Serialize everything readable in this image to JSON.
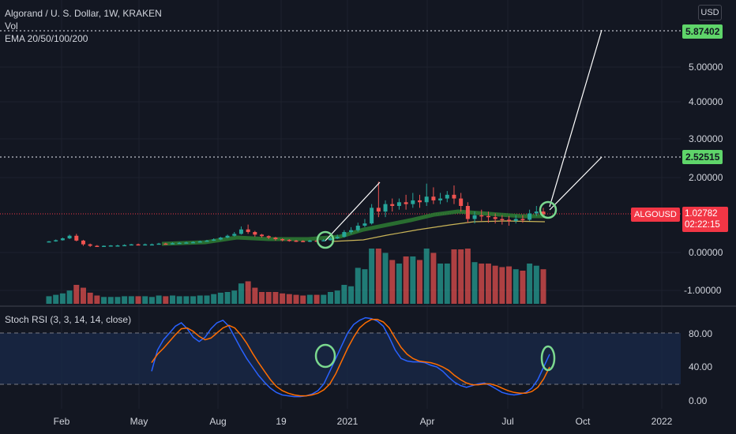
{
  "header": {
    "title": "Algorand / U. S. Dollar, 1W, KRAKEN",
    "vol_label": "Vol",
    "ema_label": "EMA 20/50/100/200",
    "currency": "USD"
  },
  "rsi_legend": "Stoch RSI (3, 3, 14, 14, close)",
  "price_tags": {
    "upper_target": "5.87402",
    "lower_target": "2.52515",
    "symbol": "ALGOUSD",
    "last_price": "1.02782",
    "countdown": "02:22:15"
  },
  "colors": {
    "background": "#131722",
    "up": "#26a69a",
    "down": "#ef5350",
    "ema_fast": "#2e7d32",
    "ema_slow": "#c9b458",
    "rsi_k": "#2962ff",
    "rsi_d": "#ff6d00",
    "annotation": "#ffffff",
    "circle": "#7bd88f",
    "target_tag": "#5fd56a",
    "price_tag": "#f23645"
  },
  "chart_data": [
    {
      "type": "candlestick",
      "title": "Algorand / U. S. Dollar, 1W, KRAKEN",
      "y_ticks": [
        "5.00000",
        "4.00000",
        "3.00000",
        "2.00000",
        "0.00000",
        "-1.00000"
      ],
      "x_ticks": [
        "Feb",
        "May",
        "Aug",
        "19",
        "2021",
        "Apr",
        "Jul",
        "Oct",
        "2022"
      ],
      "target_levels": [
        5.87402,
        2.52515
      ],
      "last_price": 1.02782,
      "candles": [
        [
          0.28,
          0.3,
          0.31,
          0.27
        ],
        [
          0.3,
          0.33,
          0.35,
          0.29
        ],
        [
          0.33,
          0.38,
          0.4,
          0.32
        ],
        [
          0.38,
          0.45,
          0.48,
          0.36
        ],
        [
          0.45,
          0.32,
          0.5,
          0.3
        ],
        [
          0.32,
          0.22,
          0.34,
          0.18
        ],
        [
          0.22,
          0.18,
          0.24,
          0.15
        ],
        [
          0.18,
          0.17,
          0.2,
          0.15
        ],
        [
          0.17,
          0.18,
          0.19,
          0.16
        ],
        [
          0.18,
          0.19,
          0.2,
          0.17
        ],
        [
          0.19,
          0.19,
          0.21,
          0.18
        ],
        [
          0.19,
          0.2,
          0.22,
          0.18
        ],
        [
          0.2,
          0.22,
          0.23,
          0.19
        ],
        [
          0.22,
          0.21,
          0.24,
          0.2
        ],
        [
          0.21,
          0.22,
          0.24,
          0.2
        ],
        [
          0.22,
          0.22,
          0.24,
          0.21
        ],
        [
          0.22,
          0.24,
          0.26,
          0.21
        ],
        [
          0.24,
          0.23,
          0.26,
          0.22
        ],
        [
          0.23,
          0.25,
          0.27,
          0.22
        ],
        [
          0.25,
          0.26,
          0.28,
          0.24
        ],
        [
          0.26,
          0.27,
          0.29,
          0.25
        ],
        [
          0.27,
          0.28,
          0.3,
          0.26
        ],
        [
          0.28,
          0.3,
          0.32,
          0.27
        ],
        [
          0.3,
          0.32,
          0.34,
          0.29
        ],
        [
          0.32,
          0.35,
          0.38,
          0.31
        ],
        [
          0.35,
          0.4,
          0.42,
          0.33
        ],
        [
          0.4,
          0.45,
          0.48,
          0.38
        ],
        [
          0.45,
          0.5,
          0.55,
          0.43
        ],
        [
          0.5,
          0.62,
          0.7,
          0.48
        ],
        [
          0.62,
          0.55,
          0.75,
          0.5
        ],
        [
          0.55,
          0.48,
          0.58,
          0.42
        ],
        [
          0.48,
          0.44,
          0.5,
          0.4
        ],
        [
          0.44,
          0.4,
          0.46,
          0.36
        ],
        [
          0.4,
          0.36,
          0.42,
          0.32
        ],
        [
          0.36,
          0.34,
          0.38,
          0.3
        ],
        [
          0.34,
          0.32,
          0.36,
          0.29
        ],
        [
          0.32,
          0.31,
          0.34,
          0.28
        ],
        [
          0.31,
          0.3,
          0.33,
          0.28
        ],
        [
          0.3,
          0.32,
          0.34,
          0.28
        ],
        [
          0.32,
          0.31,
          0.35,
          0.29
        ],
        [
          0.31,
          0.33,
          0.36,
          0.3
        ],
        [
          0.33,
          0.38,
          0.42,
          0.32
        ],
        [
          0.38,
          0.42,
          0.48,
          0.36
        ],
        [
          0.42,
          0.55,
          0.6,
          0.4
        ],
        [
          0.55,
          0.6,
          0.68,
          0.5
        ],
        [
          0.6,
          0.72,
          0.8,
          0.56
        ],
        [
          0.72,
          0.78,
          0.9,
          0.68
        ],
        [
          0.78,
          1.2,
          1.3,
          0.75
        ],
        [
          1.2,
          1.1,
          1.9,
          0.95
        ],
        [
          1.1,
          1.3,
          1.4,
          0.95
        ],
        [
          1.3,
          1.25,
          1.45,
          1.1
        ],
        [
          1.25,
          1.35,
          1.45,
          1.15
        ],
        [
          1.35,
          1.3,
          1.55,
          1.15
        ],
        [
          1.3,
          1.4,
          1.6,
          1.2
        ],
        [
          1.4,
          1.35,
          1.55,
          1.2
        ],
        [
          1.35,
          1.5,
          1.85,
          1.25
        ],
        [
          1.5,
          1.4,
          1.75,
          1.3
        ],
        [
          1.4,
          1.45,
          1.6,
          1.3
        ],
        [
          1.45,
          1.55,
          1.65,
          1.35
        ],
        [
          1.55,
          1.45,
          1.8,
          1.3
        ],
        [
          1.45,
          1.25,
          1.6,
          1.1
        ],
        [
          1.25,
          0.9,
          1.35,
          0.8
        ],
        [
          0.9,
          1.0,
          1.1,
          0.78
        ],
        [
          1.0,
          0.98,
          1.15,
          0.85
        ],
        [
          0.98,
          0.95,
          1.1,
          0.8
        ],
        [
          0.95,
          0.9,
          1.05,
          0.78
        ],
        [
          0.9,
          0.88,
          1.0,
          0.75
        ],
        [
          0.88,
          0.85,
          0.98,
          0.72
        ],
        [
          0.85,
          0.9,
          1.0,
          0.78
        ],
        [
          0.9,
          0.88,
          1.0,
          0.8
        ],
        [
          0.88,
          1.05,
          1.15,
          0.85
        ],
        [
          1.05,
          1.1,
          1.25,
          0.98
        ],
        [
          1.1,
          1.02782,
          1.2,
          0.98
        ]
      ]
    },
    {
      "type": "line",
      "title": "Stoch RSI (3, 3, 14, 14, close)",
      "y_ticks": [
        "80.00",
        "40.00",
        "0.00"
      ],
      "series": [
        {
          "values": [
            35,
            60,
            72,
            80,
            88,
            92,
            85,
            75,
            70,
            75,
            85,
            92,
            95,
            88,
            75,
            62,
            50,
            40,
            30,
            22,
            15,
            10,
            7,
            6,
            5,
            5,
            6,
            8,
            12,
            20,
            35,
            50,
            65,
            80,
            90,
            95,
            98,
            97,
            94,
            88,
            75,
            60,
            50,
            47,
            46,
            46,
            45,
            42,
            40,
            35,
            28,
            22,
            18,
            16,
            18,
            20,
            21,
            18,
            14,
            10,
            8,
            7,
            8,
            10,
            15,
            25,
            40,
            55
          ]
        },
        {
          "values": [
            45,
            55,
            62,
            70,
            78,
            85,
            86,
            82,
            76,
            72,
            74,
            80,
            86,
            89,
            86,
            78,
            68,
            56,
            45,
            35,
            25,
            17,
            12,
            9,
            7,
            6,
            6,
            7,
            9,
            13,
            20,
            32,
            47,
            62,
            75,
            86,
            92,
            96,
            96,
            93,
            86,
            74,
            63,
            55,
            50,
            47,
            46,
            45,
            43,
            40,
            36,
            30,
            25,
            21,
            19,
            19,
            20,
            20,
            18,
            15,
            12,
            10,
            9,
            9,
            11,
            16,
            26,
            40
          ]
        }
      ]
    }
  ]
}
